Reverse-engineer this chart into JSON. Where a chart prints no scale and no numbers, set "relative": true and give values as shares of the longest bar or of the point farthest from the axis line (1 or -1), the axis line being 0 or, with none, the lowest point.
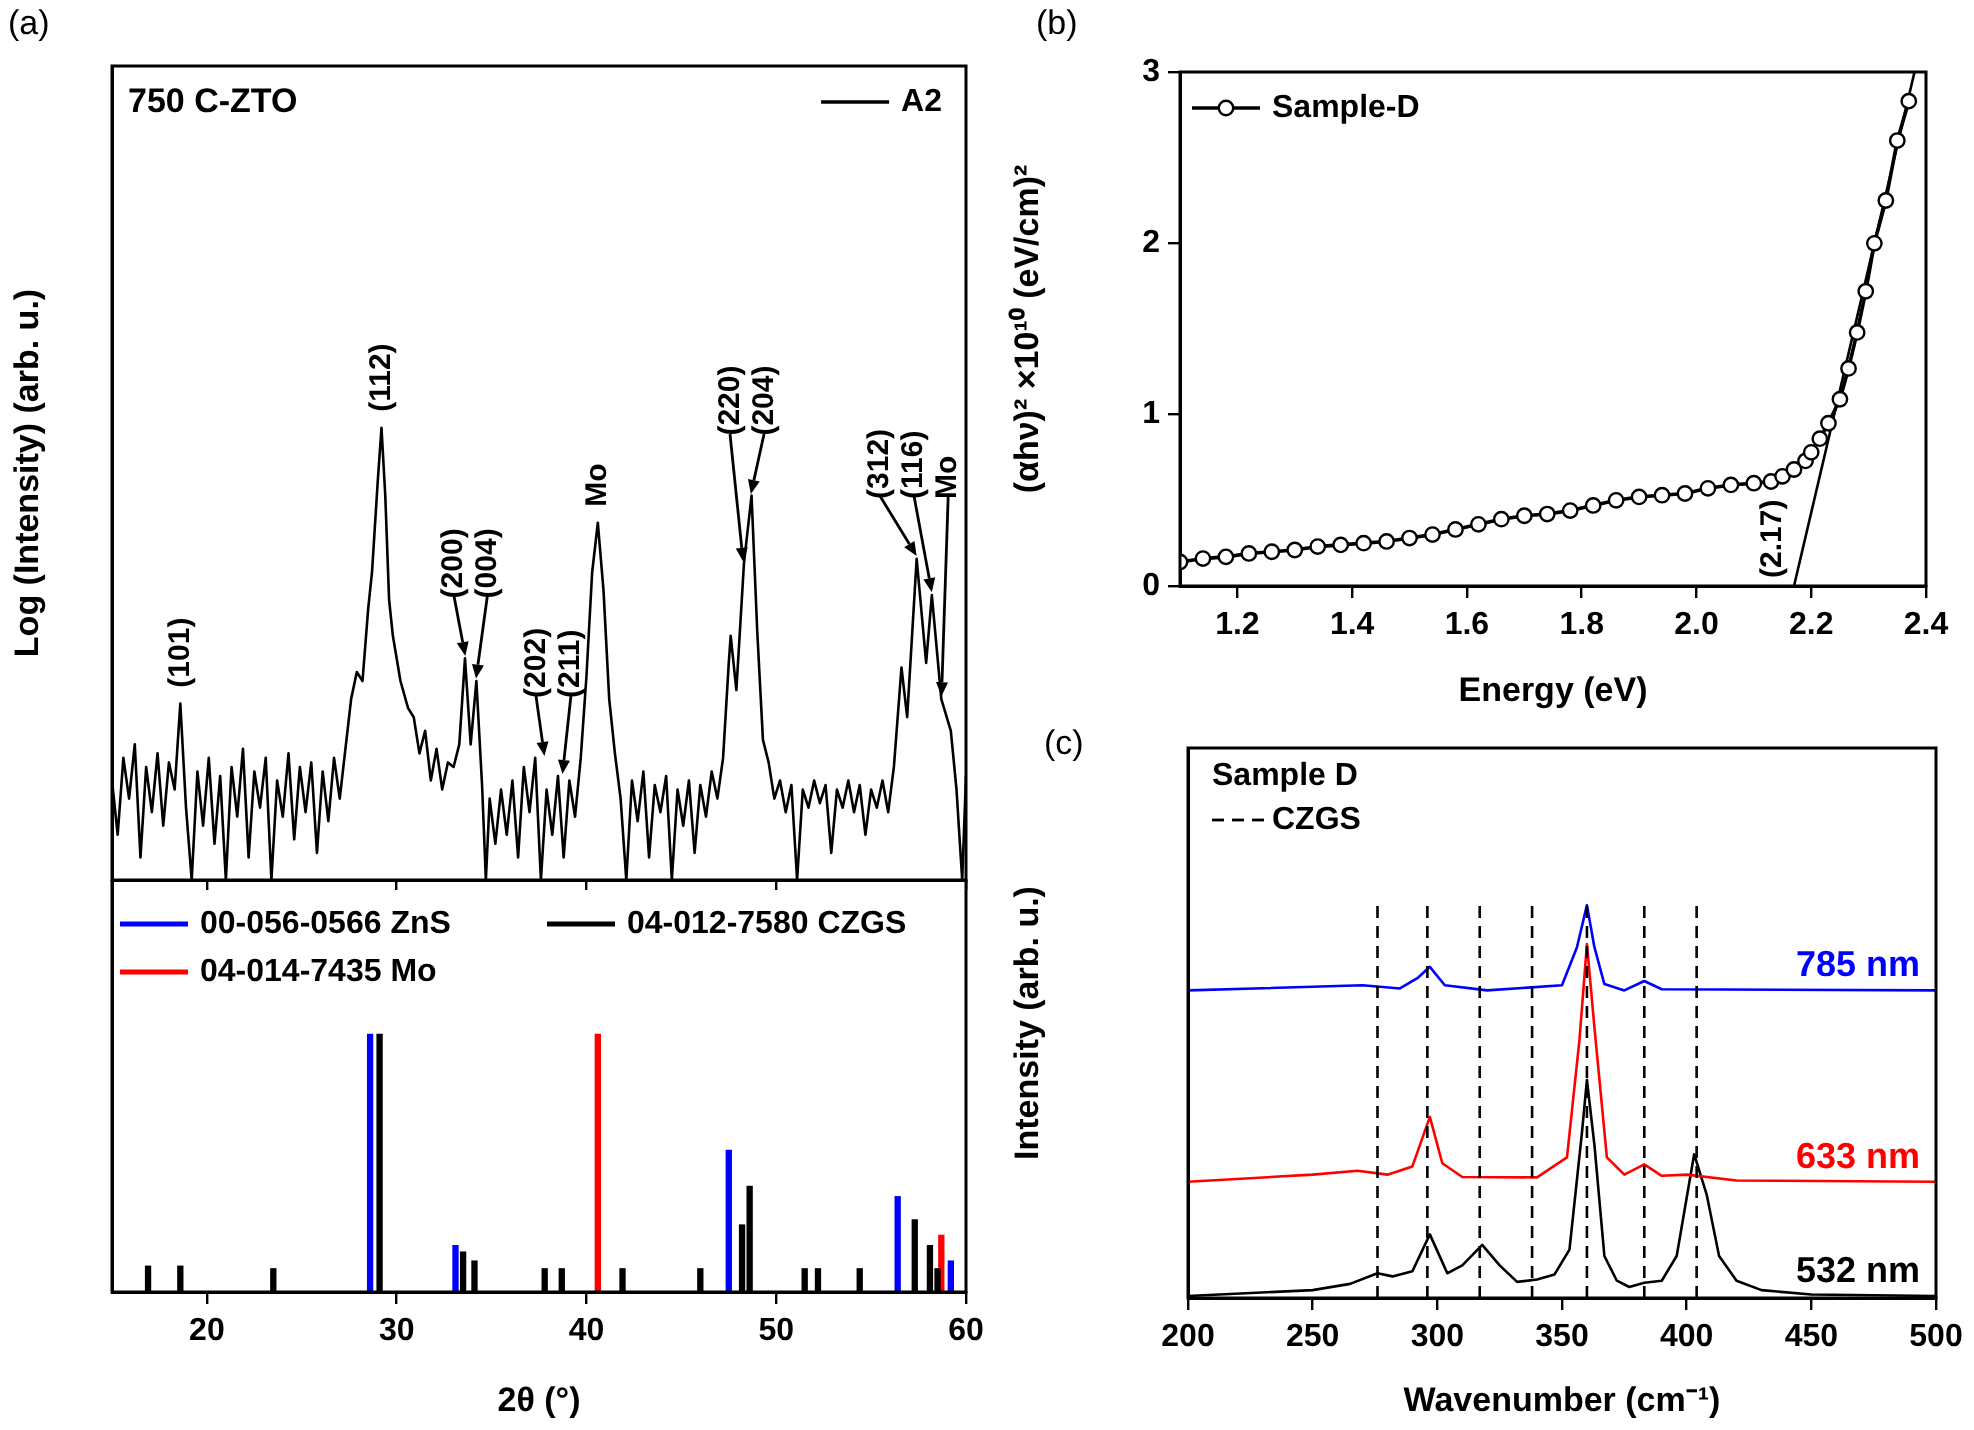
{
  "chart_data": [
    {
      "type": "line",
      "relative": true,
      "ylabel": "Log (Intensity) (arb. u.)",
      "xlim": [
        15,
        60
      ],
      "xticks": [
        20,
        30,
        40,
        50,
        60
      ],
      "tick_labels": false,
      "legend": "top right",
      "x": [
        15.0,
        15.3,
        15.6,
        15.9,
        16.2,
        16.5,
        16.8,
        17.1,
        17.4,
        17.7,
        18.0,
        18.3,
        18.6,
        18.9,
        19.2,
        19.5,
        19.8,
        20.1,
        20.4,
        20.7,
        21.0,
        21.3,
        21.6,
        21.9,
        22.2,
        22.5,
        22.8,
        23.1,
        23.4,
        23.7,
        24.0,
        24.3,
        24.6,
        24.9,
        25.2,
        25.5,
        25.8,
        26.1,
        26.4,
        26.7,
        27.0,
        27.3,
        27.6,
        27.9,
        28.2,
        28.5,
        28.7,
        29.0,
        29.2,
        29.4,
        29.6,
        29.8,
        30.2,
        30.6,
        30.9,
        31.2,
        31.5,
        31.8,
        32.1,
        32.4,
        32.7,
        33.0,
        33.3,
        33.6,
        33.9,
        34.2,
        34.5,
        34.7,
        34.9,
        35.2,
        35.5,
        35.8,
        36.1,
        36.4,
        36.7,
        37.0,
        37.3,
        37.6,
        37.9,
        38.2,
        38.5,
        38.8,
        39.1,
        39.4,
        39.7,
        40.0,
        40.3,
        40.6,
        40.9,
        41.2,
        41.5,
        41.8,
        42.1,
        42.4,
        42.7,
        43.0,
        43.3,
        43.6,
        43.9,
        44.2,
        44.5,
        44.8,
        45.1,
        45.4,
        45.7,
        46.0,
        46.3,
        46.6,
        46.9,
        47.2,
        47.5,
        47.6,
        47.9,
        48.3,
        48.7,
        49.0,
        49.3,
        49.6,
        49.9,
        50.2,
        50.5,
        50.8,
        51.1,
        51.4,
        51.7,
        52.0,
        52.3,
        52.6,
        52.9,
        53.2,
        53.5,
        53.8,
        54.1,
        54.4,
        54.7,
        55.0,
        55.3,
        55.6,
        55.9,
        56.2,
        56.6,
        56.9,
        57.4,
        57.9,
        58.2,
        58.7,
        59.2,
        59.5,
        59.8,
        60.0
      ],
      "series": [
        {
          "name": "A2",
          "color": "#000000",
          "values": [
            0.22,
            0.1,
            0.27,
            0.18,
            0.3,
            0.05,
            0.25,
            0.15,
            0.28,
            0.12,
            0.26,
            0.2,
            0.39,
            0.16,
            0.0,
            0.24,
            0.12,
            0.27,
            0.08,
            0.23,
            0.0,
            0.25,
            0.14,
            0.29,
            0.05,
            0.24,
            0.16,
            0.27,
            0.0,
            0.22,
            0.14,
            0.28,
            0.09,
            0.25,
            0.15,
            0.26,
            0.06,
            0.24,
            0.13,
            0.27,
            0.18,
            0.29,
            0.4,
            0.46,
            0.44,
            0.6,
            0.68,
            0.88,
            1.0,
            0.85,
            0.62,
            0.54,
            0.44,
            0.38,
            0.36,
            0.28,
            0.33,
            0.22,
            0.29,
            0.2,
            0.26,
            0.25,
            0.3,
            0.49,
            0.3,
            0.44,
            0.21,
            0.0,
            0.18,
            0.08,
            0.2,
            0.1,
            0.22,
            0.05,
            0.25,
            0.15,
            0.27,
            0.0,
            0.2,
            0.1,
            0.23,
            0.05,
            0.22,
            0.14,
            0.27,
            0.45,
            0.68,
            0.79,
            0.64,
            0.4,
            0.28,
            0.18,
            0.0,
            0.22,
            0.13,
            0.24,
            0.05,
            0.21,
            0.15,
            0.23,
            0.0,
            0.2,
            0.12,
            0.22,
            0.06,
            0.21,
            0.14,
            0.24,
            0.18,
            0.27,
            0.48,
            0.54,
            0.42,
            0.7,
            0.85,
            0.55,
            0.31,
            0.26,
            0.18,
            0.22,
            0.15,
            0.21,
            0.0,
            0.2,
            0.16,
            0.22,
            0.17,
            0.21,
            0.06,
            0.2,
            0.16,
            0.22,
            0.15,
            0.21,
            0.1,
            0.2,
            0.16,
            0.22,
            0.15,
            0.25,
            0.47,
            0.36,
            0.71,
            0.48,
            0.63,
            0.4,
            0.33,
            0.2,
            0.0,
            0.23
          ]
        }
      ],
      "annotations": [
        "(a)",
        "750 C-ZTO",
        {
          "text": "(101)",
          "x": 18.6,
          "y": 0.39
        },
        {
          "text": "(112)",
          "x": 29.2,
          "y": 1.0
        },
        {
          "text": "(200)",
          "x": 33.6,
          "y": 0.49
        },
        {
          "text": "(004)",
          "x": 34.2,
          "y": 0.44
        },
        {
          "text": "(202)",
          "x": 37.8,
          "y": 0.27
        },
        {
          "text": "(211)",
          "x": 38.7,
          "y": 0.23
        },
        {
          "text": "Mo",
          "x": 40.6,
          "y": 0.79
        },
        {
          "text": "(220)",
          "x": 48.3,
          "y": 0.7
        },
        {
          "text": "(204)",
          "x": 48.7,
          "y": 0.85
        },
        {
          "text": "(312)",
          "x": 57.4,
          "y": 0.71
        },
        {
          "text": "(116)",
          "x": 58.2,
          "y": 0.63
        },
        {
          "text": "Mo",
          "x": 58.7,
          "y": 0.4
        }
      ]
    },
    {
      "type": "bar",
      "relative": true,
      "xlabel": "2θ (°)",
      "xlim": [
        15,
        60
      ],
      "xticks": [
        20,
        30,
        40,
        50,
        60
      ],
      "legend": "top",
      "series": [
        {
          "name": "00-056-0566 ZnS",
          "color": "#0000ff",
          "x": [
            28.6,
            33.1,
            47.5,
            56.4,
            59.2
          ],
          "values": [
            1.0,
            0.18,
            0.55,
            0.37,
            0.12
          ]
        },
        {
          "name": "04-012-7580 CZGS",
          "color": "#000000",
          "x": [
            16.9,
            18.6,
            23.5,
            29.1,
            33.5,
            34.1,
            37.8,
            38.7,
            41.9,
            46.0,
            48.2,
            48.6,
            51.5,
            52.2,
            54.4,
            57.3,
            58.1,
            58.5
          ],
          "values": [
            0.1,
            0.1,
            0.09,
            1.0,
            0.155,
            0.12,
            0.09,
            0.09,
            0.09,
            0.09,
            0.26,
            0.41,
            0.09,
            0.09,
            0.09,
            0.28,
            0.18,
            0.09
          ]
        },
        {
          "name": "04-014-7435 Mo",
          "color": "#ff0000",
          "x": [
            40.6,
            58.7
          ],
          "values": [
            1.0,
            0.22
          ]
        }
      ]
    },
    {
      "type": "line",
      "xlabel": "Energy (eV)",
      "ylabel": "(αhν)² ×10¹⁰ (eV/cm)²",
      "xlim": [
        1.1,
        2.4
      ],
      "xticks": [
        1.2,
        1.4,
        1.6,
        1.8,
        {
          "value": 2,
          "label": "2.0"
        },
        2.2,
        2.4
      ],
      "ylim": [
        0,
        3
      ],
      "yticks": [
        0,
        1,
        2,
        3
      ],
      "legend": "top left",
      "marker": "circle",
      "series": [
        {
          "name": "Sample-D",
          "color": "#000000",
          "x": [
            1.1,
            1.14,
            1.18,
            1.22,
            1.26,
            1.3,
            1.34,
            1.38,
            1.42,
            1.46,
            1.5,
            1.54,
            1.58,
            1.62,
            1.66,
            1.7,
            1.74,
            1.78,
            1.82,
            1.86,
            1.9,
            1.94,
            1.98,
            2.02,
            2.06,
            2.1,
            2.13,
            2.15,
            2.17,
            2.19,
            2.2,
            2.215,
            2.23,
            2.25,
            2.265,
            2.28,
            2.295,
            2.31,
            2.33,
            2.35,
            2.37
          ],
          "values": [
            0.14,
            0.16,
            0.17,
            0.19,
            0.2,
            0.21,
            0.23,
            0.24,
            0.25,
            0.26,
            0.28,
            0.3,
            0.33,
            0.36,
            0.39,
            0.41,
            0.42,
            0.44,
            0.47,
            0.5,
            0.52,
            0.53,
            0.54,
            0.57,
            0.59,
            0.6,
            0.61,
            0.64,
            0.68,
            0.73,
            0.78,
            0.86,
            0.95,
            1.09,
            1.27,
            1.48,
            1.72,
            2.0,
            2.25,
            2.6,
            2.83
          ]
        },
        {
          "type": "line",
          "marker": "none",
          "color": "#000000",
          "x": [
            2.17,
            2.38
          ],
          "values": [
            0,
            3
          ]
        }
      ],
      "annotations": [
        "(b)",
        {
          "text": "(2.17)",
          "x": 2.17,
          "y": 0
        }
      ]
    },
    {
      "type": "line",
      "relative": true,
      "xlabel": "Wavenumber (cm⁻¹)",
      "ylabel": "Intensity (arb. u.)",
      "xlim": [
        200,
        500
      ],
      "xticks": [
        200,
        250,
        300,
        350,
        400,
        450,
        500
      ],
      "legend_title": "Sample D",
      "series": [
        {
          "name": "785 nm",
          "color": "#0000ff",
          "x": [
            200,
            270,
            285,
            292,
            297,
            303,
            320,
            350,
            356,
            360,
            363,
            367,
            375,
            383,
            390,
            500
          ],
          "values": [
            0.783,
            0.796,
            0.788,
            0.814,
            0.843,
            0.796,
            0.783,
            0.796,
            0.893,
            1.0,
            0.893,
            0.799,
            0.783,
            0.807,
            0.786,
            0.783
          ]
        },
        {
          "name": "633 nm",
          "color": "#ff0000",
          "x": [
            200,
            250,
            268,
            280,
            290,
            297,
            302,
            310,
            340,
            352,
            357,
            360,
            363,
            368,
            375,
            383,
            390,
            400,
            420,
            500
          ],
          "values": [
            0.296,
            0.314,
            0.324,
            0.314,
            0.335,
            0.461,
            0.343,
            0.308,
            0.307,
            0.358,
            0.657,
            0.901,
            0.689,
            0.358,
            0.314,
            0.34,
            0.311,
            0.314,
            0.299,
            0.296
          ]
        },
        {
          "name": "532 nm",
          "color": "#000000",
          "x": [
            200,
            250,
            265,
            276,
            282,
            290,
            297,
            304,
            310,
            318,
            325,
            332,
            340,
            347,
            353,
            358,
            360,
            363,
            367,
            372,
            377,
            383,
            390,
            396,
            403,
            408,
            413,
            420,
            430,
            450,
            500
          ],
          "values": [
            0.005,
            0.02,
            0.036,
            0.063,
            0.055,
            0.068,
            0.162,
            0.063,
            0.083,
            0.135,
            0.083,
            0.041,
            0.047,
            0.06,
            0.123,
            0.421,
            0.555,
            0.39,
            0.107,
            0.044,
            0.028,
            0.039,
            0.044,
            0.107,
            0.366,
            0.264,
            0.107,
            0.044,
            0.02,
            0.009,
            0.005
          ]
        }
      ],
      "ref_lines": [
        {
          "axis": "x",
          "value": 276,
          "label": "CZGS",
          "color": "#000000",
          "line_style": "dashed"
        },
        {
          "axis": "x",
          "value": 296,
          "color": "#000000",
          "line_style": "dashed"
        },
        {
          "axis": "x",
          "value": 317,
          "color": "#000000",
          "line_style": "dashed"
        },
        {
          "axis": "x",
          "value": 338,
          "color": "#000000",
          "line_style": "dashed"
        },
        {
          "axis": "x",
          "value": 360,
          "color": "#000000",
          "line_style": "dashed"
        },
        {
          "axis": "x",
          "value": 383,
          "color": "#000000",
          "line_style": "dashed"
        },
        {
          "axis": "x",
          "value": 404,
          "color": "#000000",
          "line_style": "dashed"
        }
      ],
      "annotations": [
        "(c)"
      ]
    }
  ]
}
